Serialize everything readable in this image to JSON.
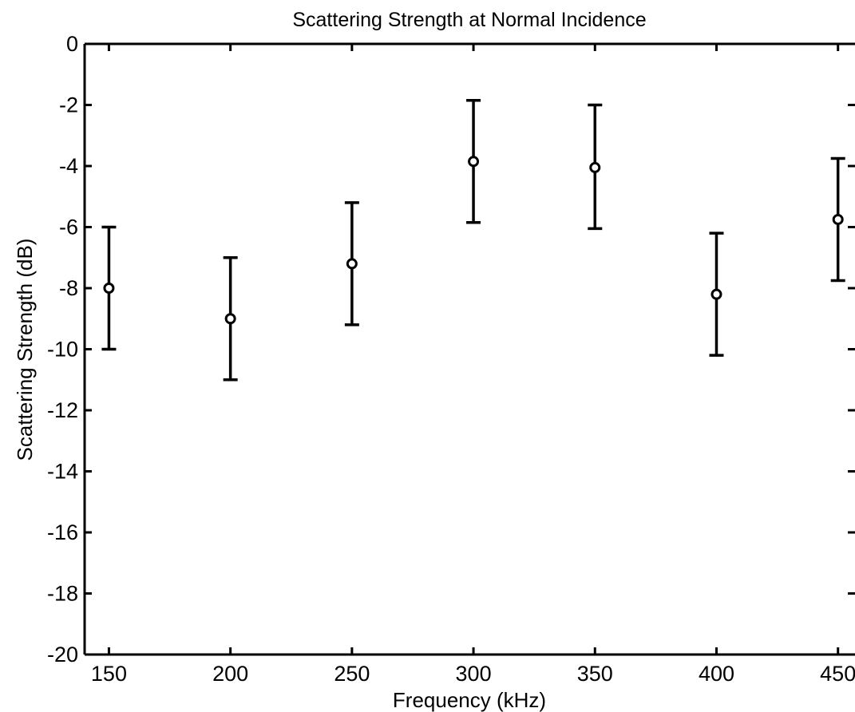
{
  "chart_data": {
    "type": "scatter",
    "title": "Scattering Strength at Normal Incidence",
    "xlabel": "Frequency (kHz)",
    "ylabel": "Scattering Strength (dB)",
    "xlim": [
      140,
      457
    ],
    "ylim": [
      -20,
      0
    ],
    "xticks": [
      150,
      200,
      250,
      300,
      350,
      400,
      450
    ],
    "yticks": [
      0,
      -2,
      -4,
      -6,
      -8,
      -10,
      -12,
      -14,
      -16,
      -18,
      -20
    ],
    "grid": false,
    "errorbars": true,
    "x": [
      150,
      200,
      250,
      300,
      350,
      400,
      450
    ],
    "y": [
      -8.0,
      -9.0,
      -7.2,
      -3.85,
      -4.05,
      -8.2,
      -5.75
    ],
    "error_low": [
      -10.0,
      -11.0,
      -9.2,
      -5.85,
      -6.05,
      -10.2,
      -7.75
    ],
    "error_high": [
      -6.0,
      -7.0,
      -5.2,
      -1.85,
      -2.0,
      -6.2,
      -3.75
    ],
    "colors": {
      "marker": "#000000",
      "axis": "#000000",
      "background": "#ffffff"
    }
  }
}
